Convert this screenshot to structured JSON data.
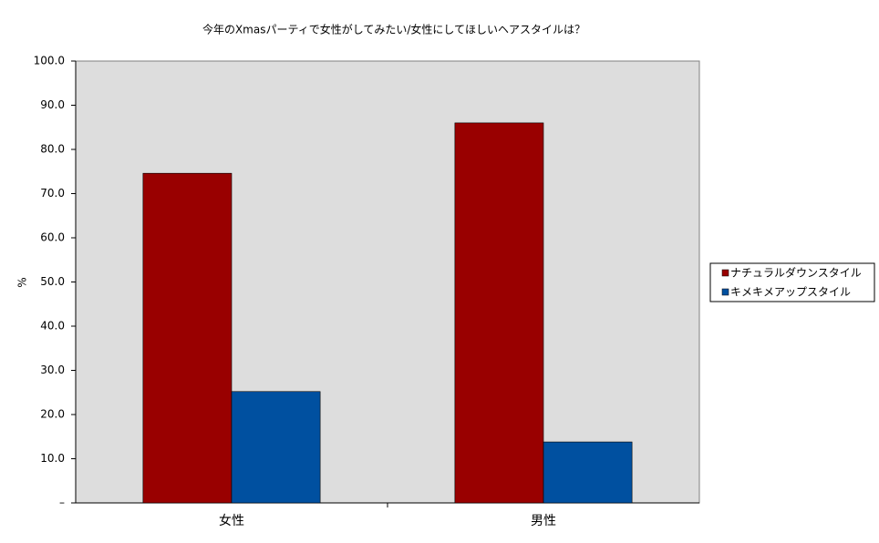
{
  "chart_data": {
    "type": "bar",
    "title": "今年のXmasパーティで女性がしてみたい/女性にしてほしいヘアスタイルは？",
    "y_label": "%",
    "categories": [
      "女性",
      "男性"
    ],
    "series": [
      {
        "name": "ナチュラルダウンスタイル",
        "color": "#990000",
        "values": [
          74.6,
          86.0
        ]
      },
      {
        "name": "キメキメアップスタイル",
        "color": "#0050a0",
        "values": [
          25.2,
          13.8
        ]
      }
    ],
    "ylim": [
      0,
      100
    ],
    "yticks": [
      {
        "value": 0,
        "label": "–"
      },
      {
        "value": 10,
        "label": "10.0"
      },
      {
        "value": 20,
        "label": "20.0"
      },
      {
        "value": 30,
        "label": "30.0"
      },
      {
        "value": 40,
        "label": "40.0"
      },
      {
        "value": 50,
        "label": "50.0"
      },
      {
        "value": 60,
        "label": "60.0"
      },
      {
        "value": 70,
        "label": "70.0"
      },
      {
        "value": 80,
        "label": "80.0"
      },
      {
        "value": 90,
        "label": "90.0"
      },
      {
        "value": 100,
        "label": "100.0"
      }
    ],
    "legend": "right"
  }
}
